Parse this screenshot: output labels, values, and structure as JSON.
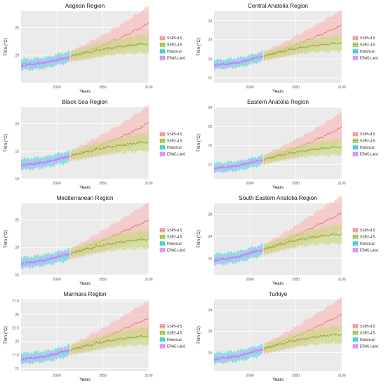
{
  "layout": {
    "rows": 4,
    "cols": 2
  },
  "legend": {
    "items": [
      {
        "key": "ssp585",
        "label": "SSP5-8.5",
        "line": "#e86b6b",
        "fill": "#f8b8b8"
      },
      {
        "key": "ssp245",
        "label": "SSP2-4.5",
        "line": "#66a61e",
        "fill": "#c8d97a"
      },
      {
        "key": "historical",
        "label": "Historical",
        "line": "#1fb6b8",
        "fill": "#67d9db"
      },
      {
        "key": "era5",
        "label": "ERA5-Land",
        "line": "#c266ff",
        "fill": "#dba8ff"
      }
    ]
  },
  "axes": {
    "xlabel": "Years",
    "ylabel": "TXm (°C)",
    "xticks": [
      2000,
      2050,
      2100
    ],
    "xlim": [
      1961,
      2100
    ]
  },
  "chart_data": [
    {
      "title": "Aegean Region",
      "ylim": [
        15,
        28
      ],
      "yticks": [
        20,
        25
      ],
      "series": [
        {
          "name": "Historical",
          "x": [
            1961,
            1975,
            1990,
            2000,
            2014
          ],
          "values": [
            18.3,
            18.4,
            18.7,
            19.2,
            19.7
          ]
        },
        {
          "name": "ERA5-Land",
          "x": [
            1961,
            1975,
            1990,
            2000,
            2014
          ],
          "values": [
            18.1,
            18.4,
            18.8,
            19.1,
            19.6
          ]
        },
        {
          "name": "SSP2-4.5",
          "x": [
            2015,
            2030,
            2050,
            2070,
            2090,
            2100
          ],
          "values": [
            19.8,
            20.4,
            21.1,
            21.6,
            22.0,
            22.1
          ]
        },
        {
          "name": "SSP5-8.5",
          "x": [
            2015,
            2030,
            2050,
            2070,
            2090,
            2100
          ],
          "values": [
            19.8,
            20.6,
            21.8,
            23.2,
            24.9,
            25.8
          ]
        }
      ]
    },
    {
      "title": "Central Anatolia Region",
      "ylim": [
        11,
        26
      ],
      "yticks": [
        12,
        16,
        20,
        24
      ],
      "series": [
        {
          "name": "Historical",
          "x": [
            1961,
            1975,
            1990,
            2000,
            2014
          ],
          "values": [
            14.8,
            15.0,
            15.3,
            15.8,
            16.5
          ]
        },
        {
          "name": "ERA5-Land",
          "x": [
            1961,
            1975,
            1990,
            2000,
            2014
          ],
          "values": [
            14.7,
            14.9,
            15.3,
            15.9,
            16.6
          ]
        },
        {
          "name": "SSP2-4.5",
          "x": [
            2015,
            2030,
            2050,
            2070,
            2090,
            2100
          ],
          "values": [
            16.6,
            17.3,
            18.2,
            18.8,
            19.2,
            19.4
          ]
        },
        {
          "name": "SSP5-8.5",
          "x": [
            2015,
            2030,
            2050,
            2070,
            2090,
            2100
          ],
          "values": [
            16.6,
            17.5,
            18.9,
            20.5,
            22.2,
            23.0
          ]
        }
      ]
    },
    {
      "title": "Black Sea Region",
      "ylim": [
        10,
        23
      ],
      "yticks": [
        10,
        15,
        20
      ],
      "series": [
        {
          "name": "Historical",
          "x": [
            1961,
            1975,
            1990,
            2000,
            2014
          ],
          "values": [
            12.6,
            12.8,
            13.1,
            13.6,
            14.0
          ]
        },
        {
          "name": "ERA5-Land",
          "x": [
            1961,
            1975,
            1990,
            2000,
            2014
          ],
          "values": [
            12.4,
            12.7,
            13.1,
            13.5,
            14.2
          ]
        },
        {
          "name": "SSP2-4.5",
          "x": [
            2015,
            2030,
            2050,
            2070,
            2090,
            2100
          ],
          "values": [
            14.2,
            14.8,
            15.6,
            16.1,
            16.6,
            16.7
          ]
        },
        {
          "name": "SSP5-8.5",
          "x": [
            2015,
            2030,
            2050,
            2070,
            2090,
            2100
          ],
          "values": [
            14.2,
            15.0,
            16.2,
            17.6,
            19.2,
            20.2
          ]
        }
      ]
    },
    {
      "title": "Eastern Anatolia Region",
      "ylim": [
        9,
        24
      ],
      "yticks": [
        12,
        16,
        20,
        24
      ],
      "series": [
        {
          "name": "Historical",
          "x": [
            1961,
            1975,
            1990,
            2000,
            2014
          ],
          "values": [
            11.3,
            11.5,
            11.8,
            12.3,
            12.9
          ]
        },
        {
          "name": "ERA5-Land",
          "x": [
            1961,
            1975,
            1990,
            2000,
            2014
          ],
          "values": [
            11.2,
            11.4,
            11.9,
            12.4,
            13.0
          ]
        },
        {
          "name": "SSP2-4.5",
          "x": [
            2015,
            2030,
            2050,
            2070,
            2090,
            2100
          ],
          "values": [
            13.0,
            13.8,
            14.6,
            15.2,
            15.6,
            15.7
          ]
        },
        {
          "name": "SSP5-8.5",
          "x": [
            2015,
            2030,
            2050,
            2070,
            2090,
            2100
          ],
          "values": [
            13.0,
            14.0,
            15.4,
            17.0,
            18.8,
            19.8
          ]
        }
      ]
    },
    {
      "title": "Mediterranean Region",
      "ylim": [
        15,
        28
      ],
      "yticks": [
        15,
        20,
        25
      ],
      "series": [
        {
          "name": "Historical",
          "x": [
            1961,
            1975,
            1990,
            2000,
            2014
          ],
          "values": [
            17.2,
            17.4,
            17.8,
            18.2,
            18.7
          ]
        },
        {
          "name": "ERA5-Land",
          "x": [
            1961,
            1975,
            1990,
            2000,
            2014
          ],
          "values": [
            17.0,
            17.3,
            17.8,
            18.3,
            18.9
          ]
        },
        {
          "name": "SSP2-4.5",
          "x": [
            2015,
            2030,
            2050,
            2070,
            2090,
            2100
          ],
          "values": [
            18.9,
            19.6,
            20.4,
            21.0,
            21.4,
            21.5
          ]
        },
        {
          "name": "SSP5-8.5",
          "x": [
            2015,
            2030,
            2050,
            2070,
            2090,
            2100
          ],
          "values": [
            18.9,
            19.8,
            21.2,
            22.7,
            24.2,
            24.9
          ]
        }
      ]
    },
    {
      "title": "South Eastern Anatolia Region",
      "ylim": [
        17,
        30
      ],
      "yticks": [
        20,
        24,
        28
      ],
      "series": [
        {
          "name": "Historical",
          "x": [
            1961,
            1975,
            1990,
            2000,
            2014
          ],
          "values": [
            19.8,
            20.0,
            20.4,
            20.9,
            21.5
          ]
        },
        {
          "name": "ERA5-Land",
          "x": [
            1961,
            1975,
            1990,
            2000,
            2014
          ],
          "values": [
            19.6,
            19.9,
            20.4,
            21.0,
            21.6
          ]
        },
        {
          "name": "SSP2-4.5",
          "x": [
            2015,
            2030,
            2050,
            2070,
            2090,
            2100
          ],
          "values": [
            21.6,
            22.4,
            23.3,
            23.9,
            24.3,
            24.4
          ]
        },
        {
          "name": "SSP5-8.5",
          "x": [
            2015,
            2030,
            2050,
            2070,
            2090,
            2100
          ],
          "values": [
            21.6,
            22.6,
            24.1,
            25.8,
            27.4,
            28.2
          ]
        }
      ]
    },
    {
      "title": "Marmara Region",
      "ylim": [
        14.5,
        27.8
      ],
      "yticks": [
        15.0,
        17.5,
        20.0,
        22.5,
        25.0,
        27.5
      ],
      "series": [
        {
          "name": "Historical",
          "x": [
            1961,
            1975,
            1990,
            2000,
            2014
          ],
          "values": [
            16.8,
            17.0,
            17.3,
            17.7,
            18.3
          ]
        },
        {
          "name": "ERA5-Land",
          "x": [
            1961,
            1975,
            1990,
            2000,
            2014
          ],
          "values": [
            16.6,
            16.9,
            17.3,
            17.8,
            18.4
          ]
        },
        {
          "name": "SSP2-4.5",
          "x": [
            2015,
            2030,
            2050,
            2070,
            2090,
            2100
          ],
          "values": [
            18.4,
            19.1,
            19.9,
            20.5,
            20.9,
            21.0
          ]
        },
        {
          "name": "SSP5-8.5",
          "x": [
            2015,
            2030,
            2050,
            2070,
            2090,
            2100
          ],
          "values": [
            18.4,
            19.3,
            20.6,
            22.1,
            23.6,
            24.2
          ]
        }
      ]
    },
    {
      "title": "Turkiye",
      "ylim": [
        12.5,
        26
      ],
      "yticks": [
        16,
        20,
        24
      ],
      "series": [
        {
          "name": "Historical",
          "x": [
            1961,
            1975,
            1990,
            2000,
            2014
          ],
          "values": [
            14.9,
            15.1,
            15.4,
            15.9,
            16.5
          ]
        },
        {
          "name": "ERA5-Land",
          "x": [
            1961,
            1975,
            1990,
            2000,
            2014
          ],
          "values": [
            14.7,
            15.0,
            15.4,
            16.0,
            16.6
          ]
        },
        {
          "name": "SSP2-4.5",
          "x": [
            2015,
            2030,
            2050,
            2070,
            2090,
            2100
          ],
          "values": [
            16.7,
            17.4,
            18.3,
            18.9,
            19.3,
            19.4
          ]
        },
        {
          "name": "SSP5-8.5",
          "x": [
            2015,
            2030,
            2050,
            2070,
            2090,
            2100
          ],
          "values": [
            16.7,
            17.6,
            19.0,
            20.6,
            22.3,
            23.1
          ]
        }
      ]
    }
  ]
}
